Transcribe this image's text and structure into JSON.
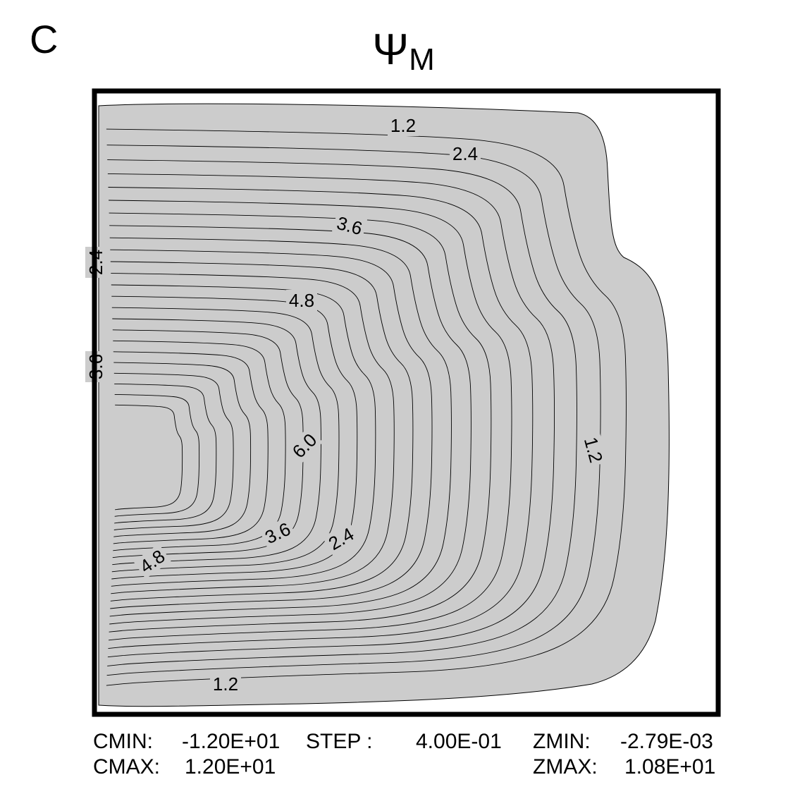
{
  "panel_label": "C",
  "title": {
    "symbol": "Ψ",
    "subscript": "M"
  },
  "colors": {
    "fill": "#cccccc",
    "contour": "#000000",
    "frame": "#000000"
  },
  "footer": {
    "cmin_label": "CMIN:",
    "cmin_value": "-1.20E+01",
    "cmax_label": "CMAX:",
    "cmax_value": "1.20E+01",
    "step_label": "STEP :",
    "step_value": "4.00E-01",
    "zmin_label": "ZMIN:",
    "zmin_value": "-2.79E-03",
    "zmax_label": "ZMAX:",
    "zmax_value": "1.08E+01"
  },
  "chart_data": {
    "type": "contour",
    "field_min": -0.00279,
    "field_max": 10.8,
    "contour_step": 0.4,
    "contour_range": [
      -12.0,
      12.0
    ],
    "contour_labels": [
      {
        "text": "1.2",
        "value": 1.2
      },
      {
        "text": "2.4",
        "value": 2.4
      },
      {
        "text": "3.6",
        "value": 3.6
      },
      {
        "text": "4.8",
        "value": 4.8
      },
      {
        "text": "6.0",
        "value": 6.0
      },
      {
        "text": "1.2",
        "value": 1.2
      },
      {
        "text": "3.6",
        "value": 3.6
      },
      {
        "text": "2.4",
        "value": 2.4
      },
      {
        "text": "4.8",
        "value": 4.8
      },
      {
        "text": "1.2",
        "value": 1.2
      },
      {
        "text": "2.4",
        "value": 2.4
      },
      {
        "text": "3.6",
        "value": 3.6
      }
    ],
    "grid": false,
    "legend": "none"
  }
}
